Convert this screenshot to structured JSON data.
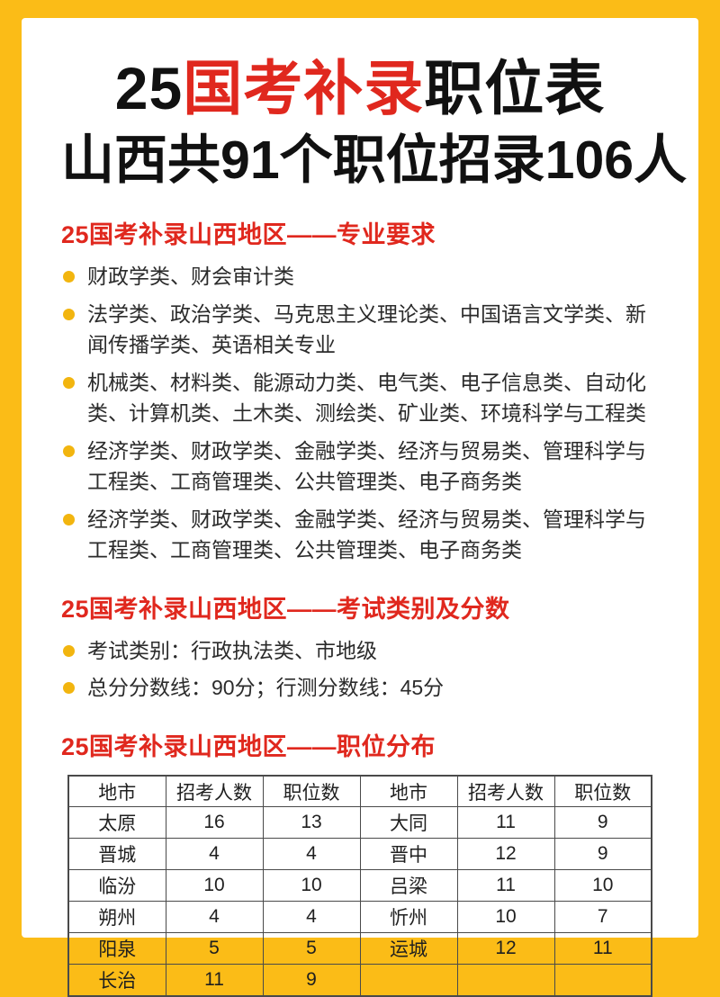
{
  "colors": {
    "page-yellow": "#FBBC17",
    "accent-red": "#E0281E",
    "bullet-yellow": "#F2B50F"
  },
  "title": {
    "line1_prefix": "25",
    "line1_highlight": "国考补录",
    "line1_suffix": "职位表",
    "line2": "山西共91个职位招录106人"
  },
  "sections": [
    {
      "heading": "25国考补录山西地区——专业要求",
      "bullets": [
        "财政学类、财会审计类",
        "法学类、政治学类、马克思主义理论类、中国语言文学类、新闻传播学类、英语相关专业",
        "机械类、材料类、能源动力类、电气类、电子信息类、自动化类、计算机类、土木类、测绘类、矿业类、环境科学与工程类",
        "经济学类、财政学类、金融学类、经济与贸易类、管理科学与工程类、工商管理类、公共管理类、电子商务类",
        "经济学类、财政学类、金融学类、经济与贸易类、管理科学与工程类、工商管理类、公共管理类、电子商务类"
      ]
    },
    {
      "heading": "25国考补录山西地区——考试类别及分数",
      "bullets": [
        "考试类别：行政执法类、市地级",
        "总分分数线：90分；行测分数线：45分"
      ]
    },
    {
      "heading": "25国考补录山西地区——职位分布",
      "bullets": []
    }
  ],
  "table": {
    "headers": [
      "地市",
      "招考人数",
      "职位数",
      "地市",
      "招考人数",
      "职位数"
    ],
    "rows": [
      [
        "太原",
        "16",
        "13",
        "大同",
        "11",
        "9"
      ],
      [
        "晋城",
        "4",
        "4",
        "晋中",
        "12",
        "9"
      ],
      [
        "临汾",
        "10",
        "10",
        "吕梁",
        "11",
        "10"
      ],
      [
        "朔州",
        "4",
        "4",
        "忻州",
        "10",
        "7"
      ],
      [
        "阳泉",
        "5",
        "5",
        "运城",
        "12",
        "11"
      ],
      [
        "长治",
        "11",
        "9",
        "",
        "",
        ""
      ]
    ]
  }
}
